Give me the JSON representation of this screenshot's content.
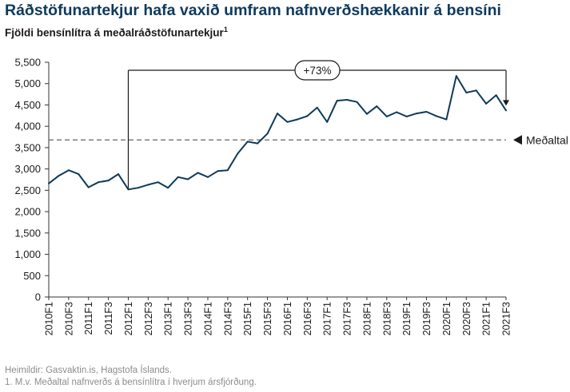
{
  "header": {
    "title": "Ráðstöfunartekjur hafa vaxið umfram nafnverðshækkanir á bensíni",
    "subtitle": "Fjöldi bensínlítra á meðalráðstöfunartekjur",
    "subtitle_note": "1"
  },
  "footer": {
    "source": "Heimildir: Gasvaktin.is, Hagstofa Íslands.",
    "note": "1. M.v. Meðaltal nafnverðs á bensínlítra í hverjum ársfjórðung."
  },
  "colors": {
    "line": "#0d3a5c",
    "title": "#0d3a5c",
    "average": "#666666",
    "footer": "#8c8c8c"
  },
  "chart_data": {
    "type": "line",
    "ylim": [
      0,
      5500
    ],
    "y_ticks": [
      {
        "value": 0,
        "label": "0"
      },
      {
        "value": 500,
        "label": "500"
      },
      {
        "value": 1000,
        "label": "1,000"
      },
      {
        "value": 1500,
        "label": "1,500"
      },
      {
        "value": 2000,
        "label": "2,000"
      },
      {
        "value": 2500,
        "label": "2,500"
      },
      {
        "value": 3000,
        "label": "3,000"
      },
      {
        "value": 3500,
        "label": "3,500"
      },
      {
        "value": 4000,
        "label": "4,000"
      },
      {
        "value": 4500,
        "label": "4,500"
      },
      {
        "value": 5000,
        "label": "5,000"
      },
      {
        "value": 5500,
        "label": "5,500"
      }
    ],
    "x": [
      "2010F1",
      "2010F2",
      "2010F3",
      "2010F4",
      "2011F1",
      "2011F2",
      "2011F3",
      "2011F4",
      "2012F1",
      "2012F2",
      "2012F3",
      "2012F4",
      "2013F1",
      "2013F2",
      "2013F3",
      "2013F4",
      "2014F1",
      "2014F2",
      "2014F3",
      "2014F4",
      "2015F1",
      "2015F2",
      "2015F3",
      "2015F4",
      "2016F1",
      "2016F2",
      "2016F3",
      "2016F4",
      "2017F1",
      "2017F2",
      "2017F3",
      "2017F4",
      "2018F1",
      "2018F2",
      "2018F3",
      "2018F4",
      "2019F1",
      "2019F2",
      "2019F3",
      "2019F4",
      "2020F1",
      "2020F2",
      "2020F3",
      "2020F4",
      "2021F1",
      "2021F2",
      "2021F3"
    ],
    "x_tick_labels": [
      "2010F1",
      "2010F3",
      "2011F1",
      "2011F3",
      "2012F1",
      "2012F3",
      "2013F1",
      "2013F3",
      "2014F1",
      "2014F3",
      "2015F1",
      "2015F3",
      "2016F1",
      "2016F3",
      "2017F1",
      "2017F3",
      "2018F1",
      "2018F3",
      "2019F1",
      "2019F3",
      "2020F1",
      "2020F3",
      "2021F1",
      "2021F3"
    ],
    "series": [
      {
        "values": [
          2660,
          2840,
          2970,
          2880,
          2570,
          2690,
          2730,
          2880,
          2520,
          2560,
          2630,
          2690,
          2560,
          2810,
          2760,
          2910,
          2810,
          2950,
          2970,
          3360,
          3640,
          3600,
          3830,
          4300,
          4100,
          4160,
          4240,
          4440,
          4100,
          4600,
          4620,
          4570,
          4290,
          4470,
          4230,
          4330,
          4230,
          4300,
          4340,
          4240,
          4160,
          5180,
          4790,
          4840,
          4530,
          4730,
          4370
        ]
      }
    ],
    "average": {
      "value": 3680,
      "label": "Meðaltal"
    },
    "annotation": {
      "label": "+73%",
      "from": "2012F1",
      "to": "2021F3"
    },
    "grid": false,
    "legend": "none"
  }
}
